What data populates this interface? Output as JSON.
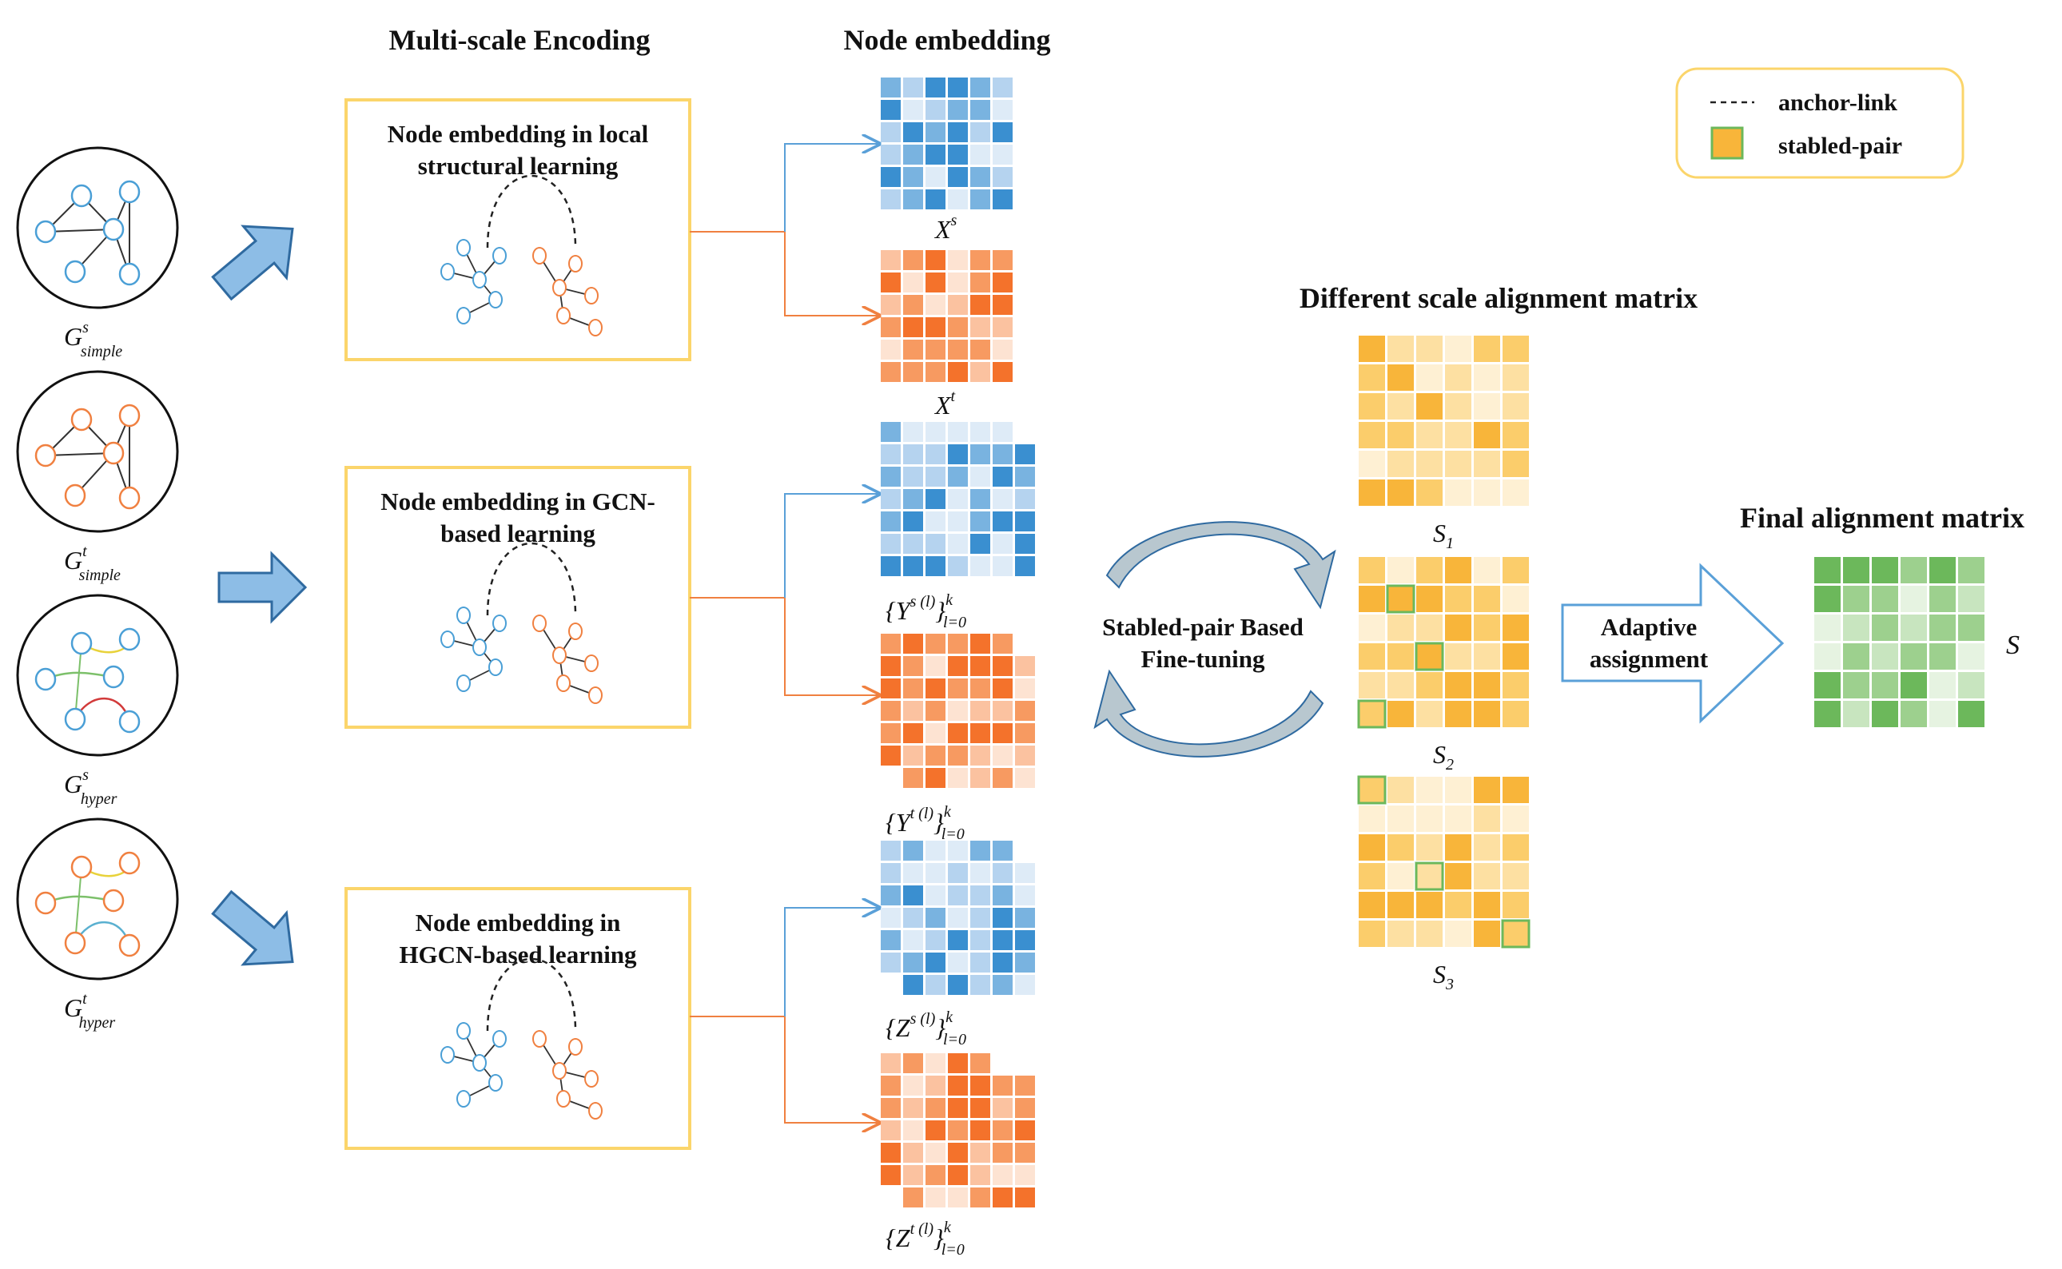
{
  "titles": {
    "multiscale": "Multi-scale Encoding",
    "node_embedding": "Node embedding",
    "different_scale": "Different scale alignment matrix",
    "final": "Final alignment matrix"
  },
  "legend": {
    "anchor_link": "anchor-link",
    "stabled_pair": "stabled-pair"
  },
  "encoders": [
    {
      "line1": "Node embedding in local",
      "line2": "structural learning"
    },
    {
      "line1": "Node embedding in GCN-",
      "line2": "based learning"
    },
    {
      "line1": "Node embedding in",
      "line2": "HGCN-based learning"
    }
  ],
  "graphs": [
    {
      "base": "G",
      "sup": "s",
      "sub": "simple"
    },
    {
      "base": "G",
      "sup": "t",
      "sub": "simple"
    },
    {
      "base": "G",
      "sup": "s",
      "sub": "hyper"
    },
    {
      "base": "G",
      "sup": "t",
      "sub": "hyper"
    }
  ],
  "embeddings": [
    {
      "label": "X",
      "sup": "s",
      "range_sup": "",
      "range_sub": ""
    },
    {
      "label": "X",
      "sup": "t",
      "range_sup": "",
      "range_sub": ""
    },
    {
      "label": "{Y",
      "sup": "s (l)",
      "range_sup": "k",
      "range_sub": "l=0"
    },
    {
      "label": "{Y",
      "sup": "t (l)",
      "range_sup": "k",
      "range_sub": "l=0"
    },
    {
      "label": "{Z",
      "sup": "s (l)",
      "range_sup": "k",
      "range_sub": "l=0"
    },
    {
      "label": "{Z",
      "sup": "t (l)",
      "range_sup": "k",
      "range_sub": "l=0"
    }
  ],
  "finetune": {
    "line1": "Stabled-pair Based",
    "line2": "Fine-tuning"
  },
  "adaptive": {
    "line1": "Adaptive",
    "line2": "assignment"
  },
  "scale_matrices": [
    {
      "base": "S",
      "sub": "1"
    },
    {
      "base": "S",
      "sub": "2"
    },
    {
      "base": "S",
      "sub": "3"
    }
  ],
  "final_label": "S",
  "colors": {
    "blue_palette": [
      "#3a8fd0",
      "#79b3e0",
      "#b5d3ef",
      "#deebf7"
    ],
    "orange_palette": [
      "#f4722b",
      "#f79a61",
      "#fbc2a0",
      "#fde3d2"
    ],
    "yellow_palette": [
      "#f8b53a",
      "#fbcd6b",
      "#fde0a2",
      "#fef0d3"
    ],
    "green_palette": [
      "#6cb85b",
      "#9dd08e",
      "#c8e5bf",
      "#e6f3e1"
    ],
    "box_border": "#fbd56b",
    "stable_border": "#6cb85b",
    "big_arrow": "#8dbde6",
    "big_arrow_stroke": "#2f6aa0",
    "cycle_arrow": "#b8c7cf"
  }
}
